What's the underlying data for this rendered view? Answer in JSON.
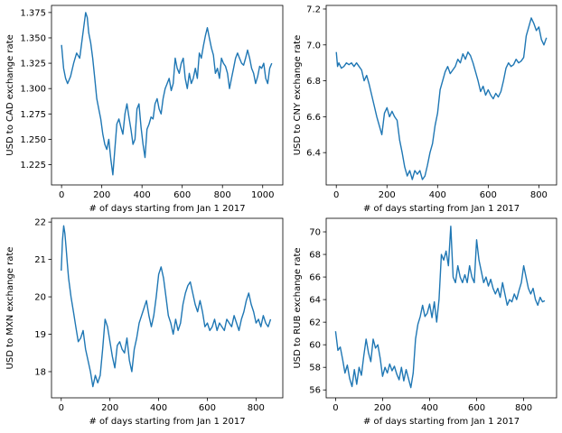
{
  "colors": {
    "series": "#1f77b4"
  },
  "chart_data": [
    {
      "type": "line",
      "xlabel": "# of days starting from Jan 1 2017",
      "ylabel": "USD to CAD exchange rate",
      "xlim": [
        -50,
        1100
      ],
      "ylim": [
        1.205,
        1.382
      ],
      "xticks": [
        0,
        200,
        400,
        600,
        800,
        1000
      ],
      "yticks": [
        1.225,
        1.25,
        1.275,
        1.3,
        1.325,
        1.35,
        1.375
      ],
      "ytick_labels": [
        "1.225",
        "1.250",
        "1.275",
        "1.300",
        "1.325",
        "1.350",
        "1.375"
      ],
      "grid": false,
      "series": [
        {
          "x": [
            0,
            10,
            20,
            30,
            45,
            60,
            75,
            90,
            100,
            110,
            120,
            128,
            135,
            145,
            155,
            165,
            175,
            185,
            195,
            205,
            215,
            225,
            235,
            245,
            255,
            265,
            275,
            285,
            295,
            305,
            315,
            325,
            335,
            345,
            355,
            365,
            375,
            385,
            395,
            405,
            415,
            425,
            435,
            445,
            455,
            465,
            475,
            485,
            495,
            505,
            515,
            525,
            535,
            545,
            555,
            565,
            575,
            585,
            595,
            605,
            615,
            625,
            635,
            645,
            655,
            665,
            675,
            685,
            695,
            705,
            715,
            725,
            735,
            745,
            755,
            765,
            775,
            785,
            795,
            805,
            815,
            825,
            835,
            845,
            855,
            865,
            875,
            885,
            895,
            905,
            915,
            925,
            935,
            945,
            955,
            965,
            975,
            985,
            995,
            1005,
            1015,
            1025,
            1035,
            1045
          ],
          "values": [
            1.343,
            1.32,
            1.31,
            1.305,
            1.312,
            1.325,
            1.335,
            1.33,
            1.345,
            1.36,
            1.375,
            1.37,
            1.355,
            1.345,
            1.33,
            1.31,
            1.29,
            1.28,
            1.27,
            1.255,
            1.245,
            1.24,
            1.25,
            1.23,
            1.215,
            1.24,
            1.265,
            1.27,
            1.262,
            1.255,
            1.275,
            1.285,
            1.272,
            1.26,
            1.245,
            1.25,
            1.28,
            1.285,
            1.262,
            1.245,
            1.232,
            1.26,
            1.265,
            1.272,
            1.27,
            1.285,
            1.29,
            1.28,
            1.275,
            1.29,
            1.3,
            1.305,
            1.31,
            1.298,
            1.305,
            1.33,
            1.32,
            1.315,
            1.325,
            1.33,
            1.31,
            1.3,
            1.315,
            1.305,
            1.31,
            1.32,
            1.31,
            1.335,
            1.33,
            1.342,
            1.352,
            1.36,
            1.35,
            1.34,
            1.333,
            1.315,
            1.32,
            1.31,
            1.33,
            1.325,
            1.322,
            1.315,
            1.3,
            1.31,
            1.32,
            1.33,
            1.335,
            1.33,
            1.325,
            1.323,
            1.33,
            1.338,
            1.33,
            1.32,
            1.315,
            1.305,
            1.312,
            1.322,
            1.32,
            1.325,
            1.31,
            1.305,
            1.32,
            1.325
          ]
        }
      ]
    },
    {
      "type": "line",
      "xlabel": "# of days starting from Jan 1 2017",
      "ylabel": "USD to CNY exchange rate",
      "xlim": [
        -40,
        870
      ],
      "ylim": [
        6.22,
        7.22
      ],
      "xticks": [
        0,
        200,
        400,
        600,
        800
      ],
      "yticks": [
        6.4,
        6.6,
        6.8,
        7.0,
        7.2
      ],
      "ytick_labels": [
        "6.4",
        "6.6",
        "6.8",
        "7.0",
        "7.2"
      ],
      "grid": false,
      "series": [
        {
          "x": [
            0,
            5,
            10,
            20,
            30,
            40,
            50,
            60,
            70,
            80,
            90,
            100,
            110,
            120,
            130,
            140,
            150,
            160,
            170,
            180,
            190,
            200,
            210,
            220,
            230,
            240,
            250,
            260,
            270,
            280,
            290,
            300,
            310,
            320,
            330,
            340,
            350,
            360,
            370,
            380,
            390,
            400,
            410,
            420,
            430,
            440,
            450,
            460,
            470,
            480,
            490,
            500,
            510,
            520,
            530,
            540,
            550,
            560,
            570,
            580,
            590,
            600,
            610,
            620,
            630,
            640,
            650,
            660,
            670,
            680,
            690,
            700,
            710,
            720,
            730,
            740,
            750,
            760,
            770,
            780,
            790,
            800,
            810,
            820,
            830
          ],
          "values": [
            6.96,
            6.88,
            6.9,
            6.87,
            6.88,
            6.9,
            6.89,
            6.9,
            6.88,
            6.9,
            6.88,
            6.86,
            6.8,
            6.83,
            6.78,
            6.72,
            6.66,
            6.6,
            6.55,
            6.5,
            6.62,
            6.65,
            6.6,
            6.63,
            6.6,
            6.58,
            6.47,
            6.4,
            6.32,
            6.27,
            6.3,
            6.25,
            6.3,
            6.28,
            6.3,
            6.25,
            6.27,
            6.33,
            6.4,
            6.45,
            6.55,
            6.62,
            6.75,
            6.8,
            6.85,
            6.88,
            6.84,
            6.86,
            6.88,
            6.92,
            6.9,
            6.95,
            6.92,
            6.96,
            6.94,
            6.9,
            6.85,
            6.8,
            6.74,
            6.77,
            6.72,
            6.75,
            6.72,
            6.7,
            6.73,
            6.71,
            6.74,
            6.8,
            6.87,
            6.9,
            6.88,
            6.89,
            6.92,
            6.9,
            6.91,
            6.93,
            7.05,
            7.1,
            7.15,
            7.12,
            7.08,
            7.1,
            7.03,
            7.0,
            7.04
          ]
        }
      ]
    },
    {
      "type": "line",
      "xlabel": "# of days starting from Jan 1 2017",
      "ylabel": "USD to MXN exchange rate",
      "xlim": [
        -40,
        910
      ],
      "ylim": [
        17.3,
        22.1
      ],
      "xticks": [
        0,
        200,
        400,
        600,
        800
      ],
      "yticks": [
        18,
        19,
        20,
        21,
        22
      ],
      "ytick_labels": [
        "18",
        "19",
        "20",
        "21",
        "22"
      ],
      "grid": false,
      "series": [
        {
          "x": [
            0,
            5,
            10,
            15,
            20,
            25,
            30,
            40,
            50,
            60,
            70,
            80,
            90,
            100,
            110,
            120,
            130,
            140,
            150,
            160,
            170,
            180,
            190,
            200,
            210,
            220,
            230,
            240,
            250,
            260,
            270,
            280,
            290,
            300,
            310,
            320,
            330,
            340,
            350,
            360,
            370,
            380,
            390,
            400,
            410,
            420,
            430,
            440,
            450,
            460,
            470,
            480,
            490,
            500,
            510,
            520,
            530,
            540,
            550,
            560,
            570,
            580,
            590,
            600,
            610,
            620,
            630,
            640,
            650,
            660,
            670,
            680,
            690,
            700,
            710,
            720,
            730,
            740,
            750,
            760,
            770,
            780,
            790,
            800,
            810,
            820,
            830,
            840,
            850,
            860
          ],
          "values": [
            20.7,
            21.5,
            21.9,
            21.7,
            21.3,
            20.9,
            20.5,
            20.0,
            19.6,
            19.2,
            18.8,
            18.9,
            19.1,
            18.6,
            18.3,
            18.0,
            17.6,
            17.9,
            17.7,
            17.9,
            18.6,
            19.4,
            19.2,
            18.8,
            18.4,
            18.1,
            18.7,
            18.8,
            18.6,
            18.5,
            18.9,
            18.3,
            18.0,
            18.6,
            18.9,
            19.3,
            19.5,
            19.7,
            19.9,
            19.5,
            19.2,
            19.5,
            20.0,
            20.6,
            20.8,
            20.5,
            20.0,
            19.5,
            19.3,
            19.0,
            19.4,
            19.1,
            19.3,
            19.8,
            20.1,
            20.3,
            20.4,
            20.1,
            19.8,
            19.6,
            19.9,
            19.6,
            19.2,
            19.3,
            19.1,
            19.2,
            19.4,
            19.1,
            19.3,
            19.2,
            19.1,
            19.4,
            19.3,
            19.2,
            19.5,
            19.3,
            19.1,
            19.4,
            19.6,
            19.9,
            20.1,
            19.8,
            19.6,
            19.3,
            19.4,
            19.2,
            19.5,
            19.3,
            19.2,
            19.4
          ]
        }
      ]
    },
    {
      "type": "line",
      "xlabel": "# of days starting from Jan 1 2017",
      "ylabel": "USD to RUB exchange rate",
      "xlim": [
        -40,
        940
      ],
      "ylim": [
        55.3,
        71.2
      ],
      "xticks": [
        0,
        200,
        400,
        600,
        800
      ],
      "yticks": [
        56,
        58,
        60,
        62,
        64,
        66,
        68,
        70
      ],
      "ytick_labels": [
        "56",
        "58",
        "60",
        "62",
        "64",
        "66",
        "68",
        "70"
      ],
      "grid": false,
      "series": [
        {
          "x": [
            0,
            10,
            20,
            30,
            40,
            50,
            60,
            70,
            80,
            90,
            100,
            110,
            120,
            130,
            140,
            150,
            160,
            170,
            180,
            190,
            200,
            210,
            220,
            230,
            240,
            250,
            260,
            270,
            280,
            290,
            300,
            310,
            320,
            330,
            340,
            350,
            360,
            370,
            380,
            390,
            400,
            410,
            420,
            430,
            440,
            450,
            460,
            470,
            480,
            490,
            500,
            510,
            520,
            530,
            540,
            550,
            560,
            570,
            580,
            590,
            600,
            610,
            620,
            630,
            640,
            650,
            660,
            670,
            680,
            690,
            700,
            710,
            720,
            730,
            740,
            750,
            760,
            770,
            780,
            790,
            800,
            810,
            820,
            830,
            840,
            850,
            860,
            870,
            880,
            890
          ],
          "values": [
            61.2,
            59.5,
            59.8,
            58.7,
            57.5,
            58.2,
            57.0,
            56.3,
            57.8,
            56.5,
            58.0,
            57.3,
            59.0,
            60.5,
            59.3,
            58.5,
            60.5,
            59.7,
            60.0,
            58.8,
            57.2,
            58.0,
            57.5,
            58.3,
            57.7,
            58.1,
            57.4,
            56.9,
            58.0,
            56.8,
            57.8,
            57.0,
            56.2,
            57.5,
            60.5,
            61.8,
            62.5,
            63.5,
            62.5,
            62.8,
            63.6,
            62.4,
            63.8,
            62.0,
            64.0,
            68.0,
            67.5,
            68.3,
            67.0,
            70.5,
            66.0,
            65.5,
            67.0,
            66.0,
            65.5,
            66.2,
            65.5,
            67.0,
            66.0,
            65.5,
            69.3,
            67.5,
            66.5,
            65.5,
            66.0,
            65.2,
            65.8,
            65.0,
            64.5,
            65.0,
            64.2,
            65.5,
            64.5,
            63.5,
            64.0,
            63.8,
            64.5,
            64.0,
            64.8,
            65.5,
            67.0,
            66.0,
            65.0,
            64.5,
            65.0,
            64.0,
            63.5,
            64.2,
            63.8,
            63.9
          ]
        }
      ]
    }
  ]
}
